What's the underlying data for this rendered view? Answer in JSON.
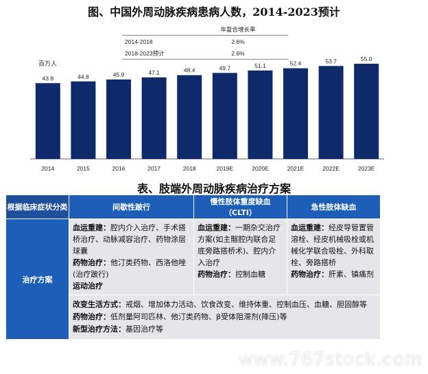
{
  "chart_title": "图、中国外周动脉疾病患病人数，2014-2023预计",
  "cagr_table": {
    "header": "年复合增长率",
    "rows": [
      {
        "period": "2014-2018",
        "rate": "2.6%"
      },
      {
        "period": "2018-2023预计",
        "rate": "2.6%"
      }
    ]
  },
  "chart_data": {
    "type": "bar",
    "title": "图、中国外周动脉疾病患病人数，2014-2023预计",
    "ylabel": "百万人",
    "xlabel": "",
    "categories": [
      "2014",
      "2015",
      "2016",
      "2017",
      "2018",
      "2019E",
      "2020E",
      "2021E",
      "2022E",
      "2023E"
    ],
    "values": [
      43.8,
      44.8,
      45.9,
      47.1,
      48.4,
      49.7,
      51.1,
      52.4,
      53.7,
      55.0
    ],
    "value_labels": [
      "43.8",
      "44.8",
      "45.9",
      "47.1",
      "48.4",
      "49.7",
      "51.1",
      "52.4",
      "53.7",
      "55.0"
    ],
    "ylim": [
      0,
      57
    ],
    "color": "#0e2a6b",
    "grid": false,
    "legend": "none"
  },
  "table_title": "表、肢端外周动脉疾病治疗方案",
  "treatment_table": {
    "headers": {
      "category": "根据临床症状分类",
      "col1": "间歇性跛行",
      "col2_line1": "慢性肢体重度缺血",
      "col2_line2": "（CLTI）",
      "col3": "急性肢体缺血"
    },
    "side_label": "治疗方案",
    "col1": {
      "revasc_label": "血运重建：",
      "revasc_text": "腔内介入治疗、手术搭桥治疗、动脉减容治疗、药物涂层球囊",
      "drug_label": "药物治疗：",
      "drug_text": "他汀类药物、西洛他唑(治疗跛行)",
      "exercise_label": "运动治疗"
    },
    "col2": {
      "revasc_label": "血运重建：",
      "revasc_text": "一期杂交治疗方案(如主髂腔内联合足底旁路搭桥术)、腔内介入治疗",
      "drug_label": "药物治疗：",
      "drug_text": "控制血糖"
    },
    "col3": {
      "revasc_label": "血运重建：",
      "revasc_text": "经皮导管置管溶栓、经皮机械吸栓或机械化学联合吸栓、外科取栓、旁路搭桥",
      "drug_label": "药物治疗：",
      "drug_text": "肝素、镇痛剂"
    },
    "common": {
      "lifestyle_label": "改变生活方式：",
      "lifestyle_text": "戒烟、增加体力活动、饮食改变、维持体重、控制血压、血糖、胆固醇等",
      "drug_label": "药物治疗：",
      "drug_text": "低剂量阿司匹林、他汀类药物、β受体阻滞剂(降压)等",
      "new_label": "新型治疗方法：",
      "new_text": "基因治疗等"
    }
  },
  "watermark": "www.767stock.com"
}
